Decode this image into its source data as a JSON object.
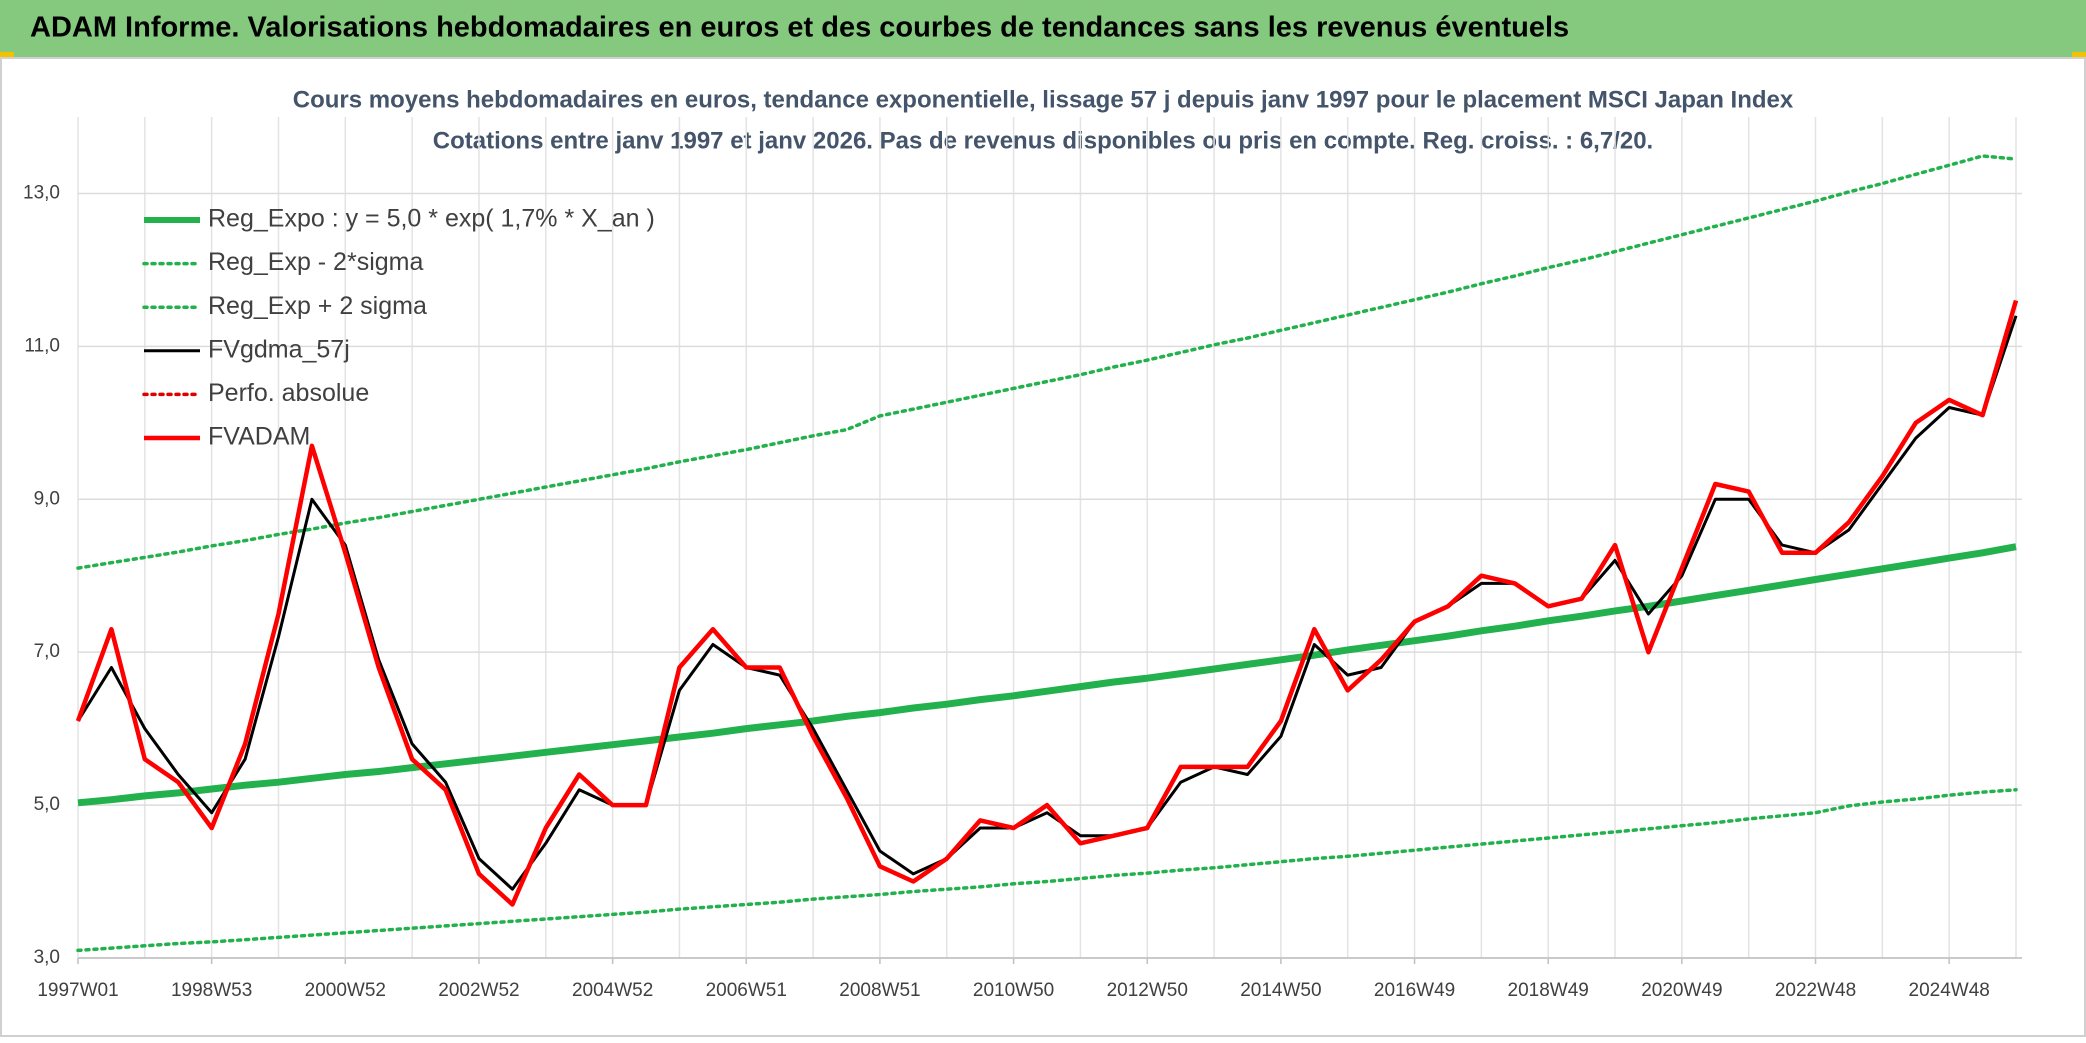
{
  "header": "ADAM Informe. Valorisations hebdomadaires en euros et des courbes de tendances sans les revenus éventuels",
  "chart_data": {
    "type": "line",
    "title": "Cours moyens hebdomadaires en euros, tendance exponentielle, lissage 57 j depuis janv 1997 pour le placement MSCI Japan Index",
    "subtitle": "Cotations entre janv 1997 et janv 2026. Pas de revenus disponibles ou pris en compte. Reg. croiss. : 6,7/20.",
    "categories": [
      "1997W01",
      null,
      null,
      null,
      "1998W53",
      null,
      null,
      null,
      "2000W52",
      null,
      null,
      null,
      "2002W52",
      null,
      null,
      null,
      "2004W52",
      null,
      null,
      null,
      "2006W51",
      null,
      null,
      null,
      "2008W51",
      null,
      null,
      null,
      "2010W50",
      null,
      null,
      null,
      "2012W50",
      null,
      null,
      null,
      "2014W50",
      null,
      null,
      null,
      "2016W49",
      null,
      null,
      null,
      "2018W49",
      null,
      null,
      null,
      "2020W49",
      null,
      null,
      null,
      "2022W48",
      null,
      null,
      null,
      "2024W48",
      null,
      null
    ],
    "series": [
      {
        "name": "Reg_Expo : y = 5,0 * exp( 1,7% *  X_an )",
        "color": "#22b14c",
        "style": "thick",
        "values": [
          5.03,
          5.07,
          5.12,
          5.16,
          5.21,
          5.26,
          5.3,
          5.35,
          5.4,
          5.44,
          5.49,
          5.54,
          5.59,
          5.64,
          5.69,
          5.74,
          5.79,
          5.84,
          5.89,
          5.94,
          6.0,
          6.05,
          6.1,
          6.16,
          6.21,
          6.27,
          6.32,
          6.38,
          6.43,
          6.49,
          6.55,
          6.61,
          6.66,
          6.72,
          6.78,
          6.84,
          6.9,
          6.96,
          7.03,
          7.09,
          7.15,
          7.21,
          7.28,
          7.34,
          7.41,
          7.47,
          7.54,
          7.6,
          7.67,
          7.74,
          7.81,
          7.88,
          7.95,
          8.02,
          8.09,
          8.16,
          8.23,
          8.3,
          8.38
        ]
      },
      {
        "name": "Reg_Exp - 2*sigma",
        "color": "#22b14c",
        "style": "dotted",
        "values": [
          3.1,
          3.13,
          3.16,
          3.19,
          3.21,
          3.24,
          3.27,
          3.3,
          3.33,
          3.36,
          3.39,
          3.42,
          3.45,
          3.48,
          3.51,
          3.54,
          3.57,
          3.6,
          3.64,
          3.67,
          3.7,
          3.73,
          3.77,
          3.8,
          3.83,
          3.87,
          3.9,
          3.93,
          3.97,
          4.0,
          4.04,
          4.08,
          4.11,
          4.15,
          4.18,
          4.22,
          4.26,
          4.3,
          4.33,
          4.37,
          4.41,
          4.45,
          4.49,
          4.53,
          4.57,
          4.61,
          4.65,
          4.69,
          4.73,
          4.77,
          4.82,
          4.86,
          4.9,
          4.99,
          5.04,
          5.08,
          5.13,
          5.17,
          5.2
        ]
      },
      {
        "name": "Reg_Exp + 2 sigma",
        "color": "#22b14c",
        "style": "dotted",
        "values": [
          8.1,
          8.17,
          8.24,
          8.31,
          8.39,
          8.46,
          8.54,
          8.61,
          8.69,
          8.76,
          8.84,
          8.92,
          9.0,
          9.08,
          9.16,
          9.24,
          9.32,
          9.4,
          9.49,
          9.57,
          9.65,
          9.74,
          9.83,
          9.91,
          10.09,
          10.18,
          10.27,
          10.36,
          10.45,
          10.54,
          10.63,
          10.73,
          10.82,
          10.92,
          11.02,
          11.11,
          11.21,
          11.31,
          11.41,
          11.51,
          11.61,
          11.71,
          11.82,
          11.92,
          12.03,
          12.13,
          12.24,
          12.35,
          12.46,
          12.57,
          12.68,
          12.79,
          12.9,
          13.02,
          13.13,
          13.25,
          13.37,
          13.49,
          13.45
        ]
      },
      {
        "name": "FVgdma_57j",
        "color": "#000000",
        "style": "solid",
        "values": [
          6.1,
          6.8,
          6.0,
          5.4,
          4.9,
          5.6,
          7.2,
          9.0,
          8.4,
          6.9,
          5.8,
          5.3,
          4.3,
          3.9,
          4.5,
          5.2,
          5.0,
          5.0,
          6.5,
          7.1,
          6.8,
          6.7,
          6.0,
          5.2,
          4.4,
          4.1,
          4.3,
          4.7,
          4.7,
          4.9,
          4.6,
          4.6,
          4.7,
          5.3,
          5.5,
          5.4,
          5.9,
          7.1,
          6.7,
          6.8,
          7.4,
          7.6,
          7.9,
          7.9,
          7.6,
          7.7,
          8.2,
          7.5,
          8.0,
          9.0,
          9.0,
          8.4,
          8.3,
          8.6,
          9.2,
          9.8,
          10.2,
          10.1,
          11.4
        ]
      },
      {
        "name": "Perfo. absolue",
        "color": "#e00000",
        "style": "dotted",
        "values": [
          null,
          null,
          null,
          null,
          null,
          null,
          null,
          null,
          null,
          null,
          null,
          null,
          null,
          null,
          null,
          null,
          null,
          null,
          null,
          null,
          null,
          null,
          null,
          null,
          null,
          null,
          null,
          null,
          null,
          null,
          null,
          null,
          null,
          null,
          null,
          null,
          null,
          null,
          null,
          null,
          null,
          null,
          null,
          null,
          null,
          null,
          null,
          null,
          null,
          null,
          null,
          null,
          null,
          null,
          null,
          null,
          null,
          null,
          null
        ]
      },
      {
        "name": "FVADAM",
        "color": "#ff0000",
        "style": "red",
        "values": [
          6.1,
          7.3,
          5.6,
          5.3,
          4.7,
          5.8,
          7.5,
          9.7,
          8.3,
          6.8,
          5.6,
          5.2,
          4.1,
          3.7,
          4.7,
          5.4,
          5.0,
          5.0,
          6.8,
          7.3,
          6.8,
          6.8,
          5.9,
          5.1,
          4.2,
          4.0,
          4.3,
          4.8,
          4.7,
          5.0,
          4.5,
          4.6,
          4.7,
          5.5,
          5.5,
          5.5,
          6.1,
          7.3,
          6.5,
          6.9,
          7.4,
          7.6,
          8.0,
          7.9,
          7.6,
          7.7,
          8.4,
          7.0,
          8.1,
          9.2,
          9.1,
          8.3,
          8.3,
          8.7,
          9.3,
          10.0,
          10.3,
          10.1,
          11.6
        ]
      }
    ],
    "ylim": [
      3,
      14
    ],
    "yticks": [
      {
        "value": 3,
        "label": "3,0"
      },
      {
        "value": 5,
        "label": "5,0"
      },
      {
        "value": 7,
        "label": "7,0"
      },
      {
        "value": 9,
        "label": "9,0"
      },
      {
        "value": 11,
        "label": "11,0"
      },
      {
        "value": 13,
        "label": "13,0"
      }
    ],
    "grid": true,
    "legend": "upper left"
  }
}
